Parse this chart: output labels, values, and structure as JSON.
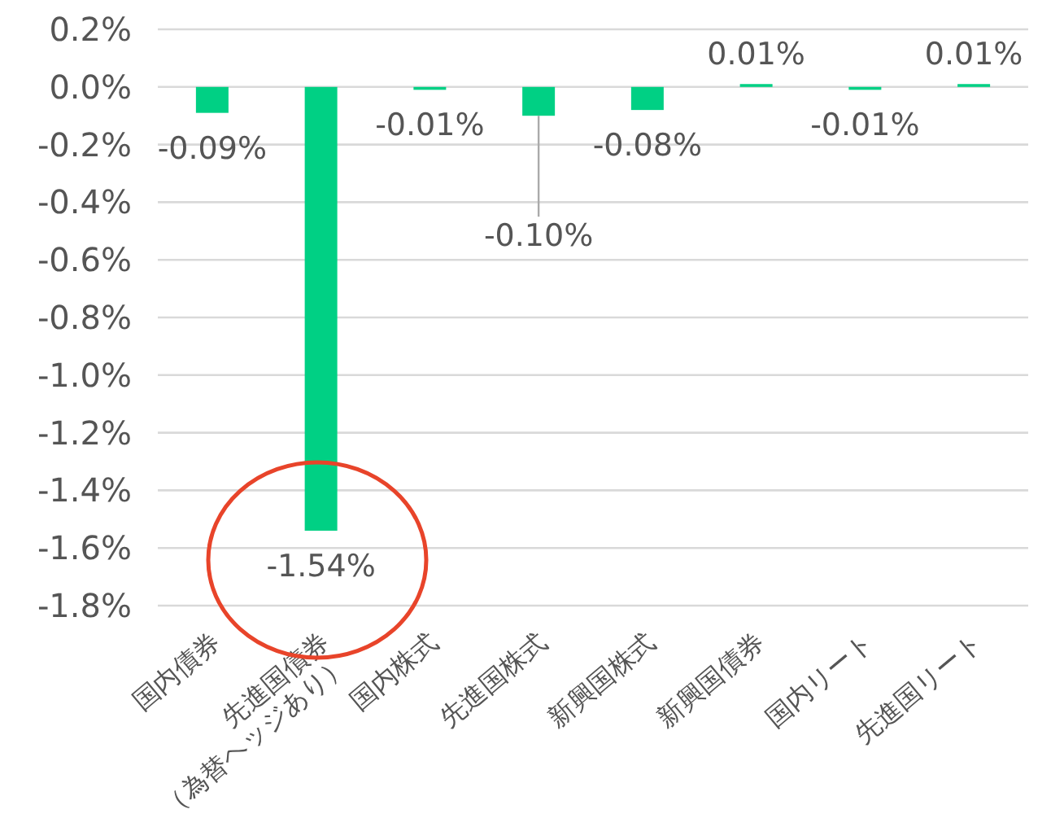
{
  "chart_data": {
    "type": "bar",
    "categories": [
      "国内債券",
      "先進国債券\n（為替ヘッジあり）",
      "国内株式",
      "先進国株式",
      "新興国株式",
      "新興国債券",
      "国内リート",
      "先進国リート"
    ],
    "values": [
      -0.09,
      -1.54,
      -0.01,
      -0.1,
      -0.08,
      0.01,
      -0.01,
      0.01
    ],
    "value_labels": [
      "-0.09%",
      "-1.54%",
      "-0.01%",
      "-0.10%",
      "-0.08%",
      "0.01%",
      "-0.01%",
      "0.01%"
    ],
    "color": "#00d084",
    "ylim": [
      -1.8,
      0.2
    ],
    "yticks": [
      {
        "value": 0.2,
        "label": "0.2%"
      },
      {
        "value": 0,
        "label": "0.0%"
      },
      {
        "value": -0.2,
        "label": "-0.2%"
      },
      {
        "value": -0.4,
        "label": "-0.4%"
      },
      {
        "value": -0.6,
        "label": "-0.6%"
      },
      {
        "value": -0.8,
        "label": "-0.8%"
      },
      {
        "value": -1.0,
        "label": "-1.0%"
      },
      {
        "value": -1.2,
        "label": "-1.2%"
      },
      {
        "value": -1.4,
        "label": "-1.4%"
      },
      {
        "value": -1.6,
        "label": "-1.6%"
      },
      {
        "value": -1.8,
        "label": "-1.8%"
      }
    ],
    "grid": "y"
  }
}
